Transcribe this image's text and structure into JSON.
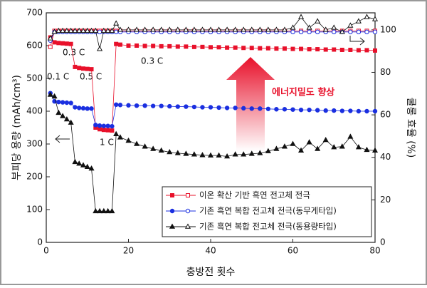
{
  "chart_data": {
    "type": "line",
    "ylabel": "부피당 용량 (mAh/cm³)",
    "y2label": "쿨롱 효율 (%)",
    "xlabel": "충방전 횟수",
    "x": [
      1,
      2,
      3,
      4,
      5,
      6,
      7,
      8,
      9,
      10,
      11,
      12,
      13,
      14,
      15,
      16,
      17,
      18,
      20,
      22,
      24,
      26,
      28,
      30,
      32,
      34,
      36,
      38,
      40,
      42,
      44,
      46,
      48,
      50,
      52,
      54,
      56,
      58,
      60,
      62,
      64,
      66,
      68,
      70,
      72,
      74,
      76,
      78,
      80
    ],
    "xlim": [
      0,
      80
    ],
    "xticks": [
      0,
      20,
      40,
      60,
      80
    ],
    "ylim": [
      0,
      700
    ],
    "yticks": [
      0,
      100,
      200,
      300,
      400,
      500,
      600,
      700
    ],
    "y2lim": [
      0,
      108
    ],
    "y2ticks": [
      0,
      20,
      40,
      60,
      80,
      100
    ],
    "series": [
      {
        "name": "이온 확산 기반 흑연 전고체 전극",
        "color": "#e8102a",
        "marker": "square",
        "values": [
          625,
          610,
          608,
          607,
          606,
          605,
          535,
          532,
          530,
          529,
          528,
          350,
          345,
          343,
          342,
          341,
          605,
          603,
          600,
          600,
          599,
          599,
          598,
          598,
          597,
          597,
          596,
          596,
          595,
          595,
          594,
          594,
          593,
          593,
          592,
          592,
          591,
          591,
          590,
          590,
          589,
          589,
          588,
          588,
          587,
          587,
          586,
          586,
          585
        ],
        "y2_values": [
          92,
          99.5,
          99.5,
          99.5,
          99.5,
          99.5,
          99.5,
          99.5,
          99.5,
          99.5,
          99.5,
          99.5,
          99.5,
          99.5,
          99.5,
          99.5,
          99.5,
          99.5,
          99.5,
          99.5,
          99.5,
          99.5,
          99.5,
          99.5,
          99.5,
          99.5,
          99.5,
          99.5,
          99.5,
          99.5,
          99.5,
          99.5,
          99.5,
          99.5,
          99.5,
          99.5,
          99.5,
          99.5,
          99.5,
          99.5,
          99.5,
          99.5,
          99.5,
          99.5,
          99.5,
          99.5,
          99.5,
          99.5,
          99.5
        ]
      },
      {
        "name": "기존 흑연 복합 전고체 전극(동무게타입)",
        "color": "#1a2fe0",
        "marker": "circle",
        "values": [
          455,
          430,
          428,
          427,
          426,
          425,
          412,
          410,
          409,
          408,
          408,
          358,
          356,
          355,
          355,
          354,
          420,
          419,
          418,
          417,
          417,
          416,
          416,
          415,
          414,
          414,
          413,
          412,
          412,
          411,
          410,
          410,
          409,
          408,
          408,
          407,
          406,
          406,
          405,
          404,
          404,
          403,
          402,
          402,
          401,
          401,
          400,
          400,
          400
        ],
        "y2_values": [
          95,
          99,
          99,
          99,
          99,
          99,
          99,
          99,
          99,
          99,
          99,
          99,
          99,
          99,
          99,
          99,
          99,
          99,
          99,
          99,
          99,
          99,
          99,
          99,
          99,
          99,
          99,
          99,
          99,
          99,
          99,
          99,
          99,
          99,
          99,
          99,
          99,
          99,
          99,
          99,
          99,
          99,
          99,
          99,
          99,
          99,
          99,
          99,
          99
        ]
      },
      {
        "name": "기존 흑연 복합 전고체 전극(동용량타입)",
        "color": "#111111",
        "marker": "triangle",
        "values": [
          450,
          445,
          395,
          385,
          375,
          365,
          245,
          240,
          235,
          230,
          225,
          95,
          95,
          95,
          95,
          95,
          330,
          320,
          310,
          300,
          292,
          285,
          280,
          275,
          272,
          270,
          268,
          266,
          265,
          265,
          262,
          268,
          268,
          270,
          272,
          278,
          285,
          292,
          300,
          280,
          305,
          285,
          312,
          290,
          292,
          322,
          290,
          282,
          280
        ],
        "y2_values": [
          96,
          99,
          99.5,
          99.5,
          99.5,
          99.5,
          99.5,
          99.5,
          99.5,
          99.5,
          99.5,
          99.5,
          91,
          99.5,
          99.5,
          99.5,
          103,
          100,
          100,
          100,
          100,
          100,
          100,
          100,
          100,
          100,
          100,
          100,
          100,
          100,
          100,
          100,
          100,
          100,
          100,
          100,
          100,
          100,
          101,
          106,
          101,
          104,
          100,
          101,
          99,
          102,
          104,
          106,
          105
        ]
      }
    ],
    "annotations": [
      "0.1 C",
      "0.3 C",
      "0.5 C",
      "1 C",
      "0.3 C",
      "에너지밀도 향상"
    ]
  }
}
